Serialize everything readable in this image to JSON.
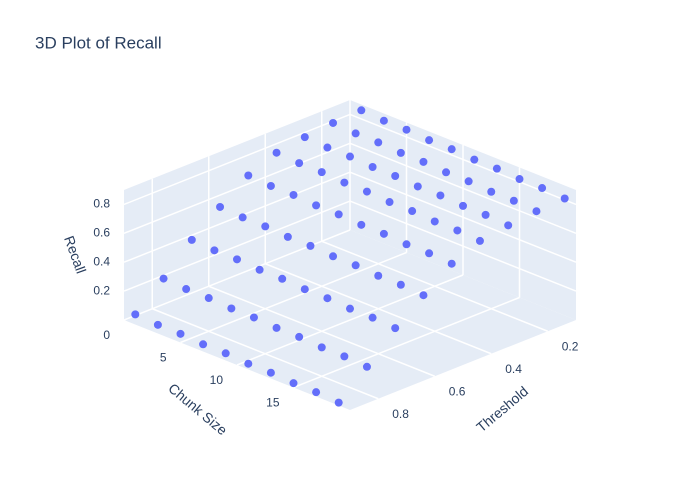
{
  "chart_data": {
    "type": "scatter3d",
    "title": "3D Plot of Recall",
    "xlabel": "Chunk Size",
    "ylabel": "Threshold",
    "zlabel": "Recall",
    "color": "#636efa",
    "xlim": [
      0,
      20
    ],
    "ylim": [
      0.1,
      0.9
    ],
    "zlim": [
      0,
      0.9
    ],
    "xticks": [
      0,
      5,
      10,
      15
    ],
    "yticks": [
      0.2,
      0.4,
      0.6,
      0.8
    ],
    "zticks": [
      0.2,
      0.4,
      0.6,
      0.8
    ],
    "x": [
      1,
      1,
      1,
      1,
      1,
      1,
      1,
      1,
      1,
      3,
      3,
      3,
      3,
      3,
      3,
      3,
      3,
      3,
      5,
      5,
      5,
      5,
      5,
      5,
      5,
      5,
      5,
      7,
      7,
      7,
      7,
      7,
      7,
      7,
      7,
      7,
      9,
      9,
      9,
      9,
      9,
      9,
      9,
      9,
      9,
      11,
      11,
      11,
      11,
      11,
      11,
      11,
      11,
      11,
      13,
      13,
      13,
      13,
      13,
      13,
      13,
      13,
      13,
      15,
      15,
      15,
      15,
      15,
      15,
      15,
      15,
      15,
      17,
      17,
      17,
      17,
      17,
      17,
      17,
      17,
      17,
      19,
      19,
      19,
      19,
      19,
      19,
      19,
      19,
      19
    ],
    "y": [
      0.1,
      0.2,
      0.3,
      0.4,
      0.5,
      0.6,
      0.7,
      0.8,
      0.9,
      0.1,
      0.2,
      0.3,
      0.4,
      0.5,
      0.6,
      0.7,
      0.8,
      0.9,
      0.1,
      0.2,
      0.3,
      0.4,
      0.5,
      0.6,
      0.7,
      0.8,
      0.9,
      0.1,
      0.2,
      0.3,
      0.4,
      0.5,
      0.6,
      0.7,
      0.8,
      0.9,
      0.1,
      0.2,
      0.3,
      0.4,
      0.5,
      0.6,
      0.7,
      0.8,
      0.9,
      0.1,
      0.2,
      0.3,
      0.4,
      0.5,
      0.6,
      0.7,
      0.8,
      0.9,
      0.1,
      0.2,
      0.3,
      0.4,
      0.5,
      0.6,
      0.7,
      0.8,
      0.9,
      0.1,
      0.2,
      0.3,
      0.4,
      0.5,
      0.6,
      0.7,
      0.8,
      0.9,
      0.1,
      0.2,
      0.3,
      0.4,
      0.5,
      0.6,
      0.7,
      0.8,
      0.9,
      0.1,
      0.2,
      0.3,
      0.4,
      0.5,
      0.6,
      0.7,
      0.8,
      0.9
    ],
    "z": [
      0.86,
      0.85,
      0.83,
      0.8,
      0.72,
      0.58,
      0.43,
      0.24,
      0.07,
      0.85,
      0.84,
      0.82,
      0.79,
      0.71,
      0.57,
      0.42,
      0.23,
      0.06,
      0.85,
      0.84,
      0.82,
      0.79,
      0.71,
      0.57,
      0.42,
      0.23,
      0.06,
      0.84,
      0.83,
      0.81,
      0.78,
      0.7,
      0.56,
      0.41,
      0.22,
      0.05,
      0.84,
      0.83,
      0.81,
      0.78,
      0.7,
      0.56,
      0.41,
      0.22,
      0.05,
      0.83,
      0.82,
      0.8,
      0.77,
      0.69,
      0.55,
      0.4,
      0.21,
      0.04,
      0.83,
      0.82,
      0.8,
      0.77,
      0.69,
      0.55,
      0.4,
      0.21,
      0.04,
      0.82,
      0.81,
      0.79,
      0.76,
      0.68,
      0.54,
      0.39,
      0.2,
      0.03,
      0.82,
      0.81,
      0.79,
      0.76,
      0.68,
      0.54,
      0.39,
      0.2,
      0.03,
      0.81,
      0.8,
      0.78,
      0.75,
      0.67,
      0.53,
      0.38,
      0.19,
      0.02
    ]
  }
}
